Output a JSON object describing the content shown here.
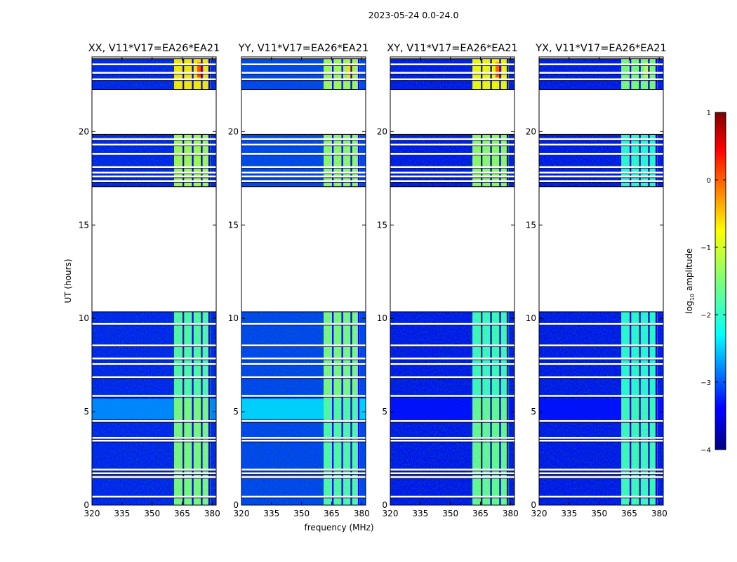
{
  "figure": {
    "suptitle": "2023-05-24 0.0-24.0"
  },
  "chart_data": {
    "type": "heatmap",
    "title": "2023-05-24 0.0-24.0",
    "xlabel": "frequency (MHz)",
    "ylabel": "UT (hours)",
    "xlim": [
      320,
      382
    ],
    "ylim": [
      0,
      24
    ],
    "xticks": [
      320,
      335,
      350,
      365,
      380
    ],
    "yticks": [
      0,
      5,
      10,
      15,
      20
    ],
    "colorbar": {
      "label": "log10 amplitude",
      "label_base": "log",
      "label_sub": "10",
      "label_rest": " amplitude",
      "range": [
        -4,
        1
      ],
      "ticks": [
        1,
        0,
        -1,
        -2,
        -3,
        -4
      ],
      "tick_labels": [
        "1",
        "0",
        "−1",
        "−2",
        "−3",
        "−4"
      ],
      "colormap": "jet"
    },
    "data_blocks_ut": [
      [
        0.0,
        10.35
      ],
      [
        17.05,
        19.85
      ],
      [
        22.25,
        23.9
      ]
    ],
    "flagged_gap_lines_ut": [
      0.45,
      1.5,
      1.7,
      1.9,
      3.45,
      3.6,
      4.5,
      5.85,
      6.85,
      7.55,
      7.85,
      8.55,
      9.7,
      17.35,
      17.6,
      17.8,
      18.1,
      18.8,
      19.3,
      19.6,
      22.8,
      23.15,
      23.6
    ],
    "rfi_band_mhz": [
      361,
      379
    ],
    "rfi_channel_gaps_mhz": [
      365.6,
      370.3,
      374.8,
      378.5
    ],
    "panels": [
      {
        "title": "XX, V11*V17=EA26*EA21",
        "background_log_amp": -3.3,
        "rfi_log_amp": {
          "early": -1.5,
          "mid": -1.7,
          "late_block2": -1.3,
          "late_block3": -0.8
        },
        "peak_log_amp": 0.0,
        "bright_ut_band": {
          "ut": [
            4.6,
            5.7
          ],
          "log_amp": -2.6
        }
      },
      {
        "title": "YY, V11*V17=EA26*EA21",
        "background_log_amp": -3.1,
        "rfi_log_amp": {
          "early": -1.7,
          "mid": -1.5,
          "late_block2": -1.4,
          "late_block3": -1.3
        },
        "peak_log_amp": -0.7,
        "bright_ut_band": {
          "ut": [
            4.6,
            5.7
          ],
          "log_amp": -2.2
        }
      },
      {
        "title": "XY, V11*V17=EA26*EA21",
        "background_log_amp": -3.4,
        "rfi_log_amp": {
          "early": -1.6,
          "mid": -1.8,
          "late_block2": -1.4,
          "late_block3": -0.9
        },
        "peak_log_amp": -0.1,
        "bright_ut_band": {
          "ut": [
            4.6,
            5.7
          ],
          "log_amp": -3.3
        }
      },
      {
        "title": "YX, V11*V17=EA26*EA21",
        "background_log_amp": -3.4,
        "rfi_log_amp": {
          "early": -1.8,
          "mid": -1.9,
          "late_block2": -1.9,
          "late_block3": -1.5
        },
        "peak_log_amp": -1.2,
        "bright_ut_band": {
          "ut": [
            4.6,
            5.7
          ],
          "log_amp": -3.3
        }
      }
    ]
  }
}
